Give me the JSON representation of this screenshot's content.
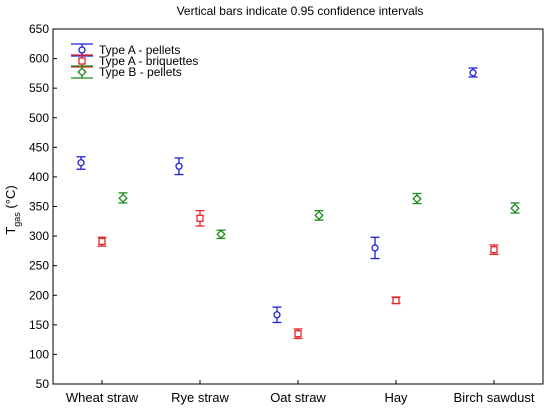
{
  "chart_data": {
    "type": "scatter",
    "title": "Vertical bars indicate 0.95 confidence intervals",
    "ylabel": {
      "main": "T",
      "sub": "gas",
      "unit": " (°C)"
    },
    "xlabel": "",
    "ylim": [
      50,
      650
    ],
    "yticks": [
      50,
      100,
      150,
      200,
      250,
      300,
      350,
      400,
      450,
      500,
      550,
      600,
      650
    ],
    "categories": [
      "Wheat straw",
      "Rye straw",
      "Oat straw",
      "Hay",
      "Birch sawdust"
    ],
    "legend_position": "top-left",
    "grid": false,
    "series": [
      {
        "name": "Type A - pellets",
        "color": "#1f1fd6",
        "marker": "circle",
        "values": [
          424,
          418,
          167,
          280,
          576
        ],
        "ci_low": [
          413,
          404,
          154,
          262,
          569
        ],
        "ci_high": [
          434,
          432,
          180,
          298,
          584
        ]
      },
      {
        "name": "Type A - briquettes",
        "color": "#e0262b",
        "marker": "square",
        "values": [
          291,
          330,
          135,
          191,
          277
        ],
        "ci_low": [
          283,
          317,
          127,
          186,
          269
        ],
        "ci_high": [
          298,
          343,
          143,
          197,
          285
        ]
      },
      {
        "name": "Type B - pellets",
        "color": "#1a8a1a",
        "marker": "diamond",
        "values": [
          364,
          303,
          335,
          363,
          347
        ],
        "ci_low": [
          356,
          296,
          327,
          355,
          339
        ],
        "ci_high": [
          373,
          310,
          343,
          372,
          356
        ]
      }
    ]
  }
}
